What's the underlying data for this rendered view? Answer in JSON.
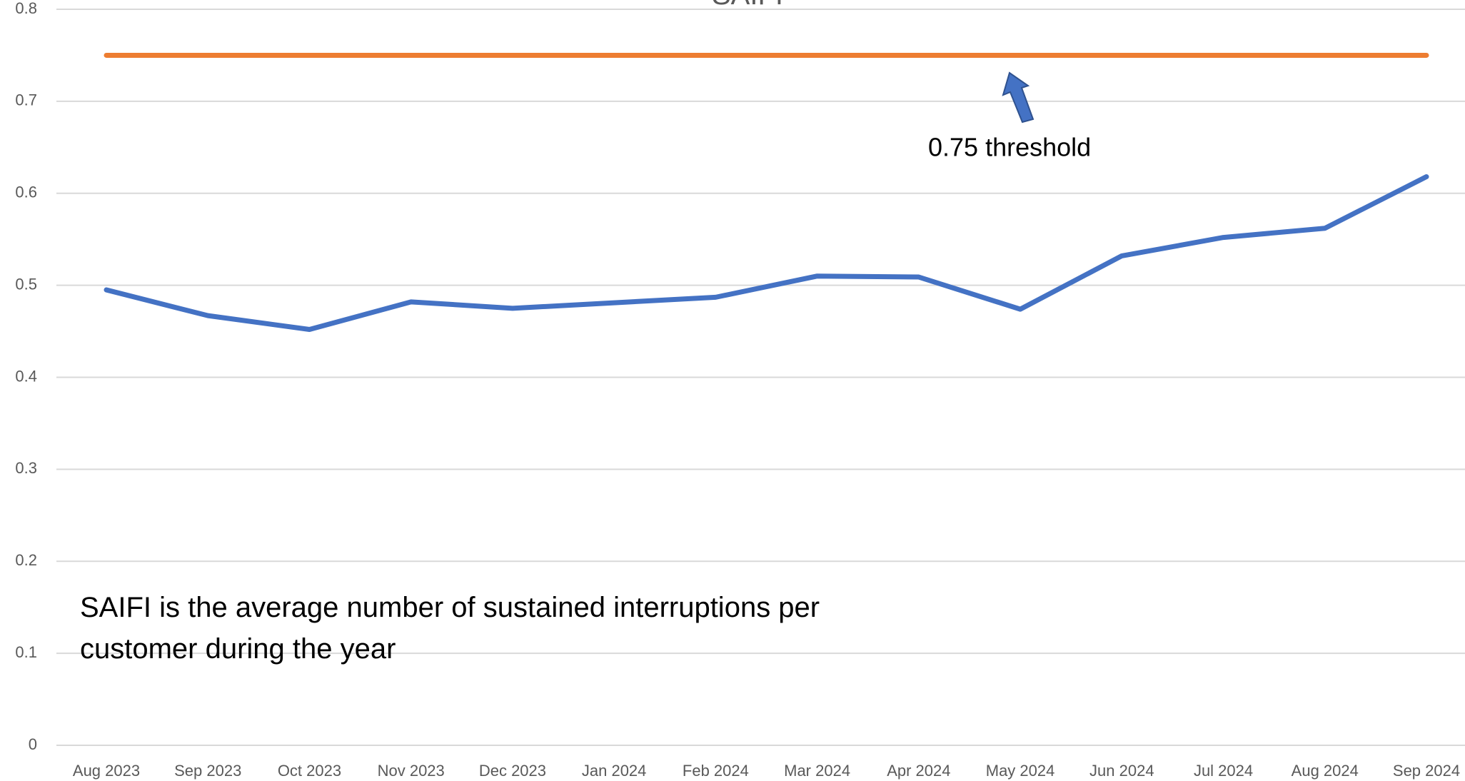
{
  "chart_data": {
    "type": "line",
    "title": "SAIFI",
    "categories": [
      "Aug 2023",
      "Sep 2023",
      "Oct 2023",
      "Nov 2023",
      "Dec 2023",
      "Jan 2024",
      "Feb 2024",
      "Mar 2024",
      "Apr 2024",
      "May 2024",
      "Jun 2024",
      "Jul 2024",
      "Aug 2024",
      "Sep 2024"
    ],
    "series": [
      {
        "color": "#4472c4",
        "values": [
          0.495,
          0.467,
          0.452,
          0.482,
          0.475,
          0.481,
          0.487,
          0.51,
          0.509,
          0.474,
          0.532,
          0.552,
          0.562,
          0.618
        ]
      },
      {
        "color": "#ed7d31",
        "values": [
          0.75,
          0.75,
          0.75,
          0.75,
          0.75,
          0.75,
          0.75,
          0.75,
          0.75,
          0.75,
          0.75,
          0.75,
          0.75,
          0.75
        ]
      }
    ],
    "ylim": [
      0,
      0.8
    ],
    "yticks": [
      0,
      0.1,
      0.2,
      0.3,
      0.4,
      0.5,
      0.6,
      0.7,
      0.8
    ],
    "grid": true,
    "annotations": [
      "0.75  threshold",
      "SAIFI is the average number of sustained interruptions per customer during the year"
    ]
  }
}
